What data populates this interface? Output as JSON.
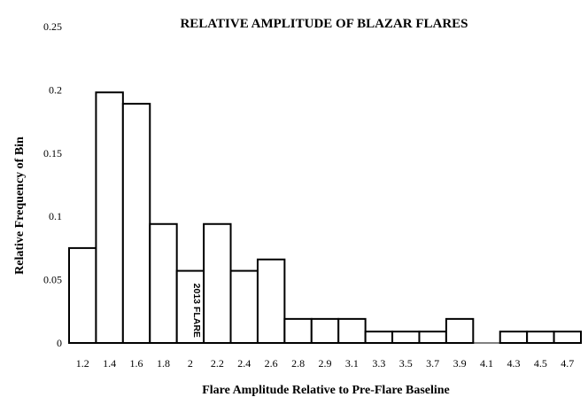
{
  "chart_data": {
    "type": "bar",
    "title": "RELATIVE AMPLITUDE OF BLAZAR FLARES",
    "xlabel": "Flare Amplitude Relative to Pre-Flare Baseline",
    "ylabel": "Relative Frequency of Bin",
    "ylim": [
      0,
      0.25
    ],
    "yticks": [
      "0",
      "0.05",
      "0.1",
      "0.15",
      "0.2",
      "0.25"
    ],
    "categories": [
      "1.2",
      "1.4",
      "1.6",
      "1.8",
      "2",
      "2.2",
      "2.4",
      "2.6",
      "2.8",
      "2.9",
      "3.1",
      "3.3",
      "3.5",
      "3.7",
      "3.9",
      "4.1",
      "4.3",
      "4.5",
      "4.7"
    ],
    "values": [
      0.075,
      0.198,
      0.189,
      0.094,
      0.057,
      0.094,
      0.057,
      0.066,
      0.019,
      0.019,
      0.019,
      0.009,
      0.009,
      0.009,
      0.019,
      0,
      0.009,
      0.009,
      0.009
    ],
    "annotations": [
      {
        "category": "2",
        "text": "2013 FLARE"
      }
    ],
    "grid": false,
    "legend": "none",
    "bar_fill": "#ffffff",
    "bar_stroke": "#000000"
  }
}
